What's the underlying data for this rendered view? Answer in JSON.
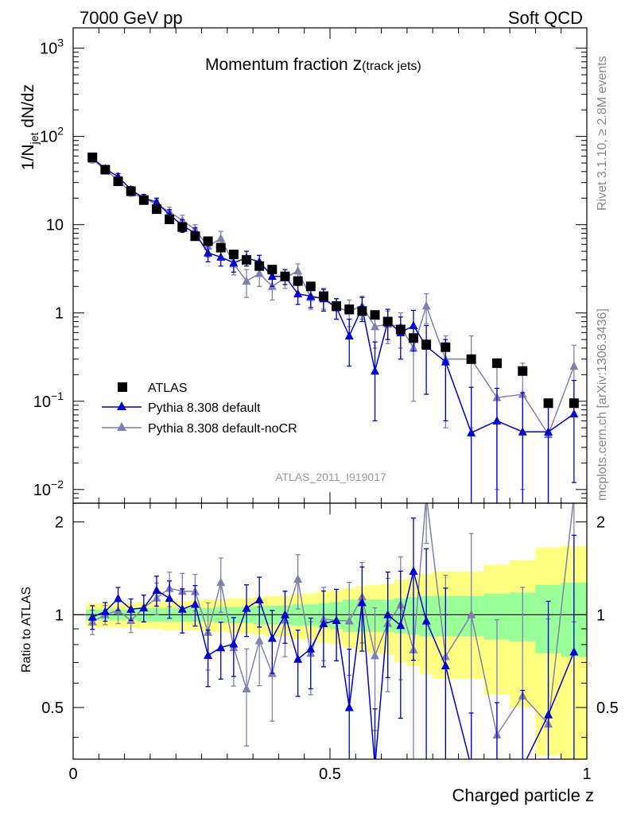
{
  "header": {
    "energy_label": "7000 GeV pp",
    "process_label": "Soft QCD"
  },
  "side": {
    "rivet_label": "Rivet 3.1.10, ≥ 2.8M events",
    "mcplots_label": "mcplots.cern.ch [arXiv:1306.3436]"
  },
  "colors": {
    "atlas": "#000000",
    "default": "#0000cc",
    "nocr": "#8080b0",
    "band_inner": "#99ff99",
    "band_outer": "#ffff80"
  },
  "chart_data": {
    "type": "scatter",
    "title_main": "Momentum fraction ",
    "title_var": "z",
    "title_sub": "(track jets)",
    "analysis_label": "ATLAS_2011_I919017",
    "xlabel": "Charged particle z",
    "ylabel_main": "1/N",
    "ylabel_sub": "jet",
    "ylabel_rest": " dN/dz",
    "ratio_ylabel": "Ratio to ATLAS",
    "xlim": [
      0,
      1
    ],
    "ylim": [
      0.007,
      1700
    ],
    "ratio_ylim": [
      0.34,
      2.3
    ],
    "x_ticks": [
      {
        "value": 0,
        "label": "0"
      },
      {
        "value": 0.5,
        "label": "0.5"
      },
      {
        "value": 1,
        "label": "1"
      }
    ],
    "y_ticks": [
      {
        "value": 0.01,
        "base": "10",
        "exp": "−2"
      },
      {
        "value": 0.1,
        "base": "10",
        "exp": "−1"
      },
      {
        "value": 1,
        "base": "1",
        "exp": ""
      },
      {
        "value": 10,
        "base": "10",
        "exp": ""
      },
      {
        "value": 100,
        "base": "10",
        "exp": "2"
      },
      {
        "value": 1000,
        "base": "10",
        "exp": "3"
      }
    ],
    "ratio_ticks": [
      {
        "value": 0.5,
        "label": "0.5"
      },
      {
        "value": 1,
        "label": "1"
      },
      {
        "value": 2,
        "label": "2"
      }
    ],
    "legend": {
      "atlas": "ATLAS",
      "default": "Pythia 8.308 default",
      "nocr": "Pythia 8.308 default-noCR"
    },
    "x": [
      0.0375,
      0.0625,
      0.0875,
      0.1125,
      0.1375,
      0.1625,
      0.1875,
      0.2125,
      0.2375,
      0.2625,
      0.2875,
      0.3125,
      0.3375,
      0.3625,
      0.3875,
      0.4125,
      0.4375,
      0.4625,
      0.4875,
      0.5125,
      0.5375,
      0.5625,
      0.5875,
      0.6125,
      0.6375,
      0.6625,
      0.6875,
      0.725,
      0.775,
      0.825,
      0.875,
      0.925,
      0.975
    ],
    "bin_edges": [
      0.025,
      0.05,
      0.075,
      0.1,
      0.125,
      0.15,
      0.175,
      0.2,
      0.225,
      0.25,
      0.275,
      0.3,
      0.325,
      0.35,
      0.375,
      0.4,
      0.425,
      0.45,
      0.475,
      0.5,
      0.525,
      0.55,
      0.575,
      0.6,
      0.625,
      0.65,
      0.675,
      0.7,
      0.75,
      0.8,
      0.85,
      0.9,
      0.95,
      1.0
    ],
    "band_inner": [
      0.04,
      0.04,
      0.04,
      0.04,
      0.05,
      0.05,
      0.05,
      0.05,
      0.05,
      0.05,
      0.06,
      0.06,
      0.06,
      0.07,
      0.07,
      0.07,
      0.08,
      0.08,
      0.09,
      0.1,
      0.12,
      0.12,
      0.12,
      0.12,
      0.13,
      0.14,
      0.15,
      0.15,
      0.15,
      0.17,
      0.18,
      0.25,
      0.27
    ],
    "band_outer": [
      0.09,
      0.09,
      0.09,
      0.09,
      0.1,
      0.1,
      0.11,
      0.11,
      0.11,
      0.12,
      0.12,
      0.13,
      0.13,
      0.14,
      0.15,
      0.15,
      0.17,
      0.17,
      0.19,
      0.2,
      0.22,
      0.24,
      0.25,
      0.26,
      0.3,
      0.32,
      0.36,
      0.38,
      0.38,
      0.45,
      0.5,
      0.65,
      0.67
    ],
    "series": [
      {
        "name": "ATLAS",
        "key": "atlas",
        "marker": "square",
        "y": [
          58,
          42,
          31,
          24,
          19,
          15,
          11.5,
          9.4,
          7.4,
          6.5,
          5.5,
          4.6,
          4.0,
          3.4,
          3.1,
          2.6,
          2.3,
          2.0,
          1.55,
          1.2,
          1.1,
          1.05,
          0.95,
          0.8,
          0.65,
          0.52,
          0.44,
          0.41,
          0.3,
          0.27,
          0.22,
          0.095,
          0.095
        ]
      },
      {
        "name": "Pythia 8.308 default",
        "key": "default",
        "marker": "triangle",
        "y": [
          57,
          43,
          35,
          25,
          20,
          18,
          13,
          9.8,
          8.0,
          4.8,
          4.3,
          3.7,
          4.2,
          3.8,
          2.6,
          2.6,
          1.65,
          1.55,
          1.45,
          1.15,
          0.55,
          1.15,
          0.22,
          0.8,
          0.6,
          0.72,
          0.42,
          0.28,
          0.044,
          0.06,
          0.045,
          0.045,
          0.072
        ],
        "err_up": [
          5,
          3,
          3,
          2,
          2,
          2,
          1.8,
          1.6,
          1.2,
          1,
          0.9,
          0.8,
          0.8,
          0.7,
          0.6,
          0.5,
          0.4,
          0.4,
          0.4,
          0.3,
          0.3,
          0.35,
          0.25,
          0.3,
          0.3,
          0.35,
          0.3,
          0.22,
          0.1,
          0.08,
          0.08,
          0.06,
          0.1
        ],
        "err_dn": [
          5,
          3,
          3,
          2,
          2,
          2,
          1.8,
          1.6,
          1.2,
          1,
          0.9,
          0.8,
          0.8,
          0.7,
          0.6,
          0.5,
          0.4,
          0.4,
          0.4,
          0.3,
          0.3,
          0.35,
          0.16,
          0.3,
          0.3,
          0.35,
          0.3,
          0.22,
          0.04,
          0.055,
          0.04,
          0.04,
          0.06
        ]
      },
      {
        "name": "Pythia 8.308 default-noCR",
        "key": "nocr",
        "marker": "triangle",
        "y": [
          55,
          42,
          32,
          23,
          20,
          17,
          14,
          11.2,
          8.8,
          5.7,
          7.0,
          3.6,
          2.3,
          2.8,
          2.0,
          2.5,
          3.0,
          1.5,
          1.5,
          1.15,
          1.05,
          1.2,
          0.7,
          0.75,
          0.7,
          0.4,
          1.2,
          0.3,
          0.3,
          0.11,
          0.12,
          0.042,
          0.25
        ],
        "err_up": [
          5,
          3,
          3,
          2,
          2,
          2,
          1.8,
          1.6,
          1.2,
          1.4,
          1.4,
          0.9,
          0.8,
          0.8,
          0.6,
          0.6,
          0.6,
          0.4,
          0.4,
          0.3,
          0.35,
          0.35,
          0.3,
          0.3,
          0.3,
          0.3,
          0.45,
          0.25,
          0.25,
          0.15,
          0.15,
          0.05,
          0.18
        ],
        "err_dn": [
          5,
          3,
          3,
          2,
          2,
          2,
          1.8,
          1.6,
          1.2,
          1.4,
          1.4,
          0.9,
          0.8,
          0.8,
          0.6,
          0.6,
          0.6,
          0.4,
          0.4,
          0.3,
          0.35,
          0.35,
          0.3,
          0.3,
          0.3,
          0.3,
          0.45,
          0.25,
          0.25,
          0.1,
          0.11,
          0.038,
          0.16
        ]
      }
    ]
  }
}
